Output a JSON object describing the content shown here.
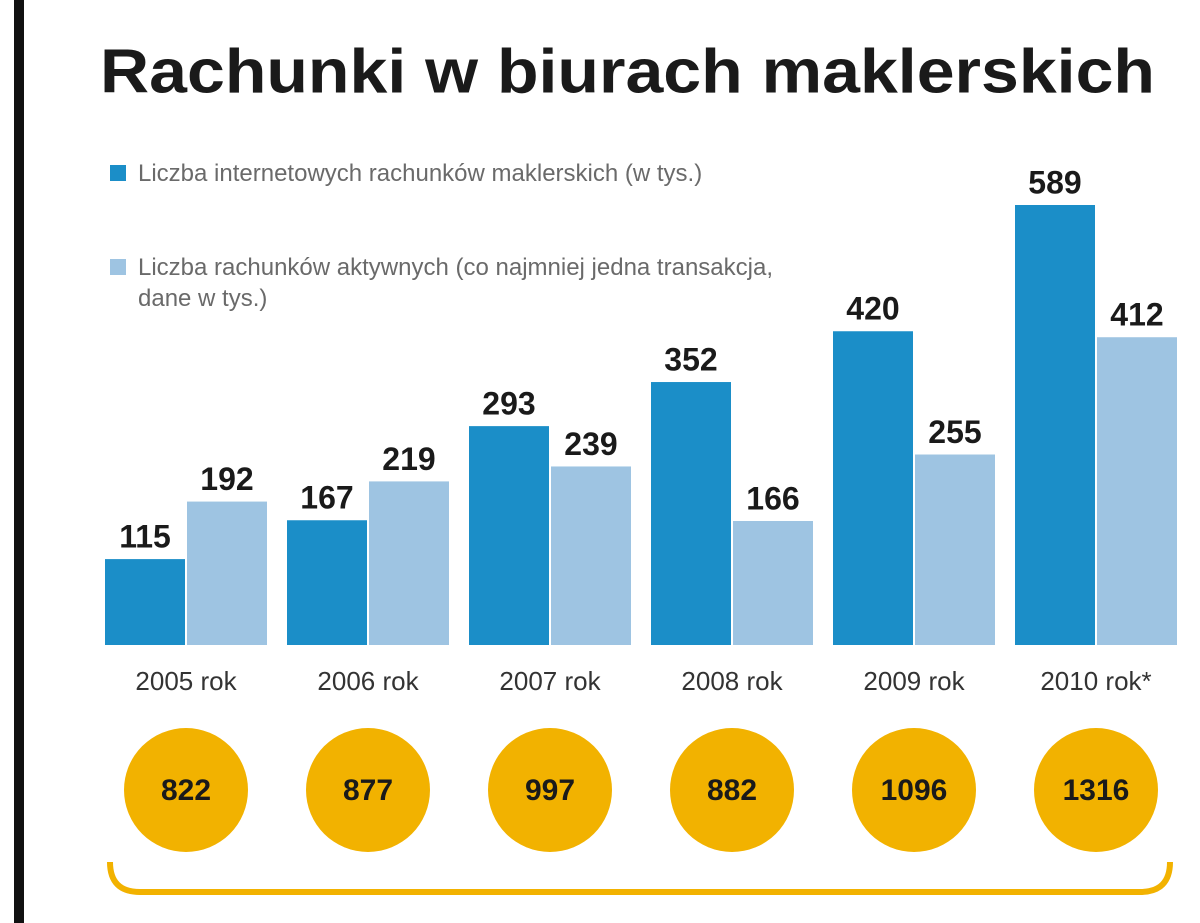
{
  "chart_data": {
    "type": "bar",
    "title": "Rachunki w biurach maklerskich",
    "categories": [
      "2005 rok",
      "2006 rok",
      "2007 rok",
      "2008 rok",
      "2009 rok",
      "2010 rok*"
    ],
    "series": [
      {
        "name": "Liczba internetowych rachunków maklerskich (w tys.)",
        "color": "#1b8ec8",
        "values": [
          115,
          167,
          293,
          352,
          420,
          589
        ]
      },
      {
        "name": "Liczba rachunków aktywnych (co najmniej jedna transakcja, dane w tys.)",
        "color": "#9ec4e2",
        "values": [
          192,
          219,
          239,
          166,
          255,
          412
        ]
      }
    ],
    "totals": {
      "color": "#f2b200",
      "values": [
        822,
        877,
        997,
        882,
        1096,
        1316
      ]
    }
  }
}
